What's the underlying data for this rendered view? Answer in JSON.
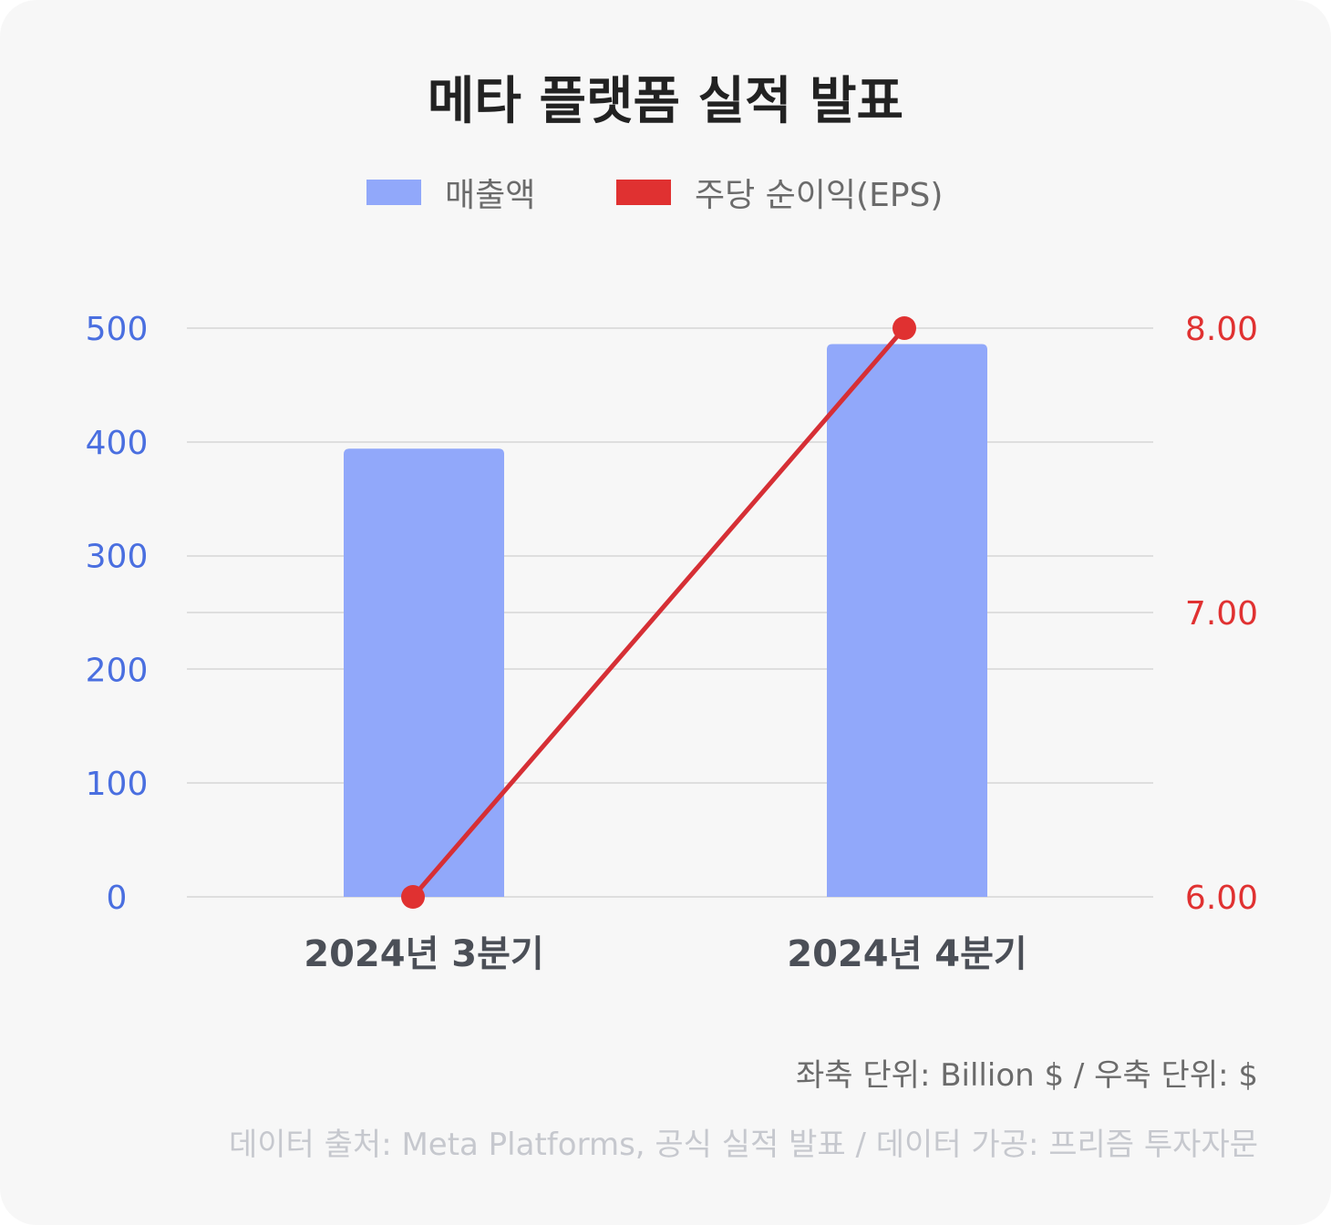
{
  "chart_data": {
    "type": "bar",
    "title": "메타 플랫폼 실적 발표",
    "categories": [
      "2024년 3분기",
      "2024년 4분기"
    ],
    "series": [
      {
        "name": "매출액",
        "type": "bar",
        "axis": "left",
        "color": "#91a8fa",
        "values": [
          394,
          486
        ]
      },
      {
        "name": "주당 순이익(EPS)",
        "type": "line",
        "axis": "right",
        "color": "#e03131",
        "values": [
          6.0,
          8.0
        ]
      }
    ],
    "y_left": {
      "min": 0,
      "max": 500,
      "ticks": [
        "0",
        "100",
        "200",
        "300",
        "400",
        "500"
      ],
      "color": "#4a6fe0"
    },
    "y_right": {
      "min": 6,
      "max": 8,
      "ticks": [
        "6.00",
        "7.00",
        "8.00"
      ],
      "color": "#e03131"
    },
    "grid": true,
    "legend_position": "top-center"
  },
  "notes": {
    "units": "좌축 단위: Billion $ / 우축 단위: $",
    "source": "데이터 출처: Meta Platforms, 공식 실적 발표 / 데이터 가공: 프리즘 투자자문"
  }
}
